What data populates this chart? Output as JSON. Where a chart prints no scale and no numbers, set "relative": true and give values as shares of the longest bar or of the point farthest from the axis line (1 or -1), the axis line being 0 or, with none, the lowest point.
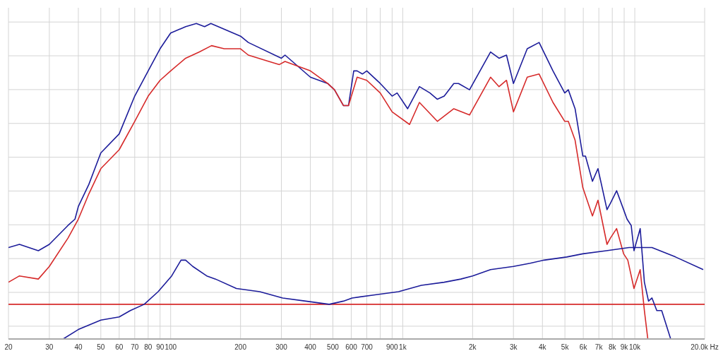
{
  "chart_data": {
    "type": "line",
    "relative": true,
    "log": "x",
    "grid": true,
    "legend": false,
    "xlim": [
      20,
      20000
    ],
    "xticks": [
      20,
      30,
      40,
      50,
      60,
      70,
      80,
      90,
      100,
      200,
      300,
      400,
      500,
      600,
      700,
      {
        "value": 800,
        "label": null
      },
      900,
      {
        "value": 1000,
        "label": "1k"
      },
      {
        "value": 2000,
        "label": "2k"
      },
      {
        "value": 3000,
        "label": "3k"
      },
      {
        "value": 4000,
        "label": "4k"
      },
      {
        "value": 5000,
        "label": "5k"
      },
      {
        "value": 6000,
        "label": "6k"
      },
      {
        "value": 7000,
        "label": "7k"
      },
      {
        "value": 8000,
        "label": "8k"
      },
      {
        "value": 9000,
        "label": "9k"
      },
      {
        "value": 10000,
        "label": "10k"
      },
      {
        "value": 20000,
        "label": "20.0k Hz"
      }
    ],
    "ref_lines": [
      {
        "axis": "y",
        "value": 0.11,
        "color": "#d62a2a"
      }
    ],
    "series": [
      {
        "color": "#1c1c9a",
        "x": [
          20,
          22.3,
          26.9,
          30,
          36.1,
          38.7,
          40,
          44.4,
          50,
          60,
          70,
          80,
          90,
          100,
          116,
          129,
          140,
          149,
          200,
          216,
          300,
          311,
          400,
          475,
          508,
          555,
          584,
          615,
          636,
          670,
          700,
          800,
          900,
          946,
          1050,
          1180,
          1310,
          1410,
          1510,
          1660,
          1740,
          1940,
          2390,
          2600,
          2800,
          3000,
          3440,
          3870,
          4440,
          4990,
          5170,
          5530,
          5970,
          6130,
          6570,
          6940,
          7590,
          7850,
          8350,
          8950,
          9260,
          9650,
          9920,
          10550,
          11000,
          11460,
          11860,
          12440,
          13060,
          14280
        ],
        "values": [
          0.29,
          0.3,
          0.28,
          0.3,
          0.36,
          0.38,
          0.42,
          0.49,
          0.59,
          0.65,
          0.77,
          0.85,
          0.92,
          0.97,
          0.99,
          1.0,
          0.99,
          1.0,
          0.96,
          0.94,
          0.89,
          0.9,
          0.83,
          0.81,
          0.79,
          0.74,
          0.74,
          0.85,
          0.85,
          0.84,
          0.85,
          0.81,
          0.77,
          0.78,
          0.73,
          0.8,
          0.78,
          0.76,
          0.77,
          0.81,
          0.81,
          0.79,
          0.91,
          0.89,
          0.9,
          0.81,
          0.92,
          0.94,
          0.85,
          0.78,
          0.79,
          0.73,
          0.58,
          0.58,
          0.5,
          0.54,
          0.41,
          0.43,
          0.47,
          0.41,
          0.38,
          0.36,
          0.28,
          0.35,
          0.18,
          0.12,
          0.13,
          0.09,
          0.09,
          0.0
        ]
      },
      {
        "color": "#d62a2a",
        "x": [
          20,
          22.3,
          26.9,
          30,
          36.1,
          40,
          44.4,
          50,
          60,
          70,
          80,
          90,
          100,
          116,
          133,
          150,
          170,
          200,
          216,
          265,
          294,
          311,
          400,
          475,
          508,
          555,
          584,
          636,
          700,
          800,
          900,
          1070,
          1180,
          1410,
          1660,
          1940,
          2390,
          2600,
          2800,
          3000,
          3440,
          3870,
          4440,
          4990,
          5170,
          5530,
          5970,
          6570,
          6940,
          7590,
          7850,
          8350,
          8950,
          9330,
          9920,
          10550,
          11000,
          11380
        ],
        "values": [
          0.18,
          0.2,
          0.19,
          0.23,
          0.32,
          0.38,
          0.46,
          0.54,
          0.6,
          0.69,
          0.77,
          0.82,
          0.85,
          0.89,
          0.91,
          0.93,
          0.92,
          0.92,
          0.9,
          0.88,
          0.87,
          0.88,
          0.85,
          0.81,
          0.79,
          0.74,
          0.74,
          0.83,
          0.82,
          0.78,
          0.72,
          0.68,
          0.75,
          0.69,
          0.73,
          0.71,
          0.83,
          0.8,
          0.82,
          0.72,
          0.83,
          0.84,
          0.75,
          0.69,
          0.69,
          0.63,
          0.48,
          0.39,
          0.44,
          0.3,
          0.32,
          0.35,
          0.27,
          0.25,
          0.16,
          0.22,
          0.09,
          0.0
        ]
      },
      {
        "color": "#1c1c9a",
        "x": [
          34.4,
          40,
          50,
          60,
          67,
          76.9,
          88.3,
          101,
          110.8,
          116,
          124.5,
          143,
          156,
          192,
          242,
          304,
          382,
          482,
          555,
          605,
          759,
          959,
          1203,
          1509,
          1780,
          2000,
          2390,
          3000,
          3540,
          4060,
          5090,
          5970,
          7540,
          9450,
          11860,
          14980,
          19720
        ],
        "values": [
          0.0,
          0.03,
          0.06,
          0.07,
          0.09,
          0.11,
          0.15,
          0.2,
          0.25,
          0.25,
          0.23,
          0.2,
          0.19,
          0.16,
          0.15,
          0.13,
          0.12,
          0.11,
          0.12,
          0.13,
          0.14,
          0.15,
          0.17,
          0.18,
          0.19,
          0.2,
          0.22,
          0.23,
          0.24,
          0.25,
          0.26,
          0.27,
          0.28,
          0.29,
          0.29,
          0.26,
          0.22
        ]
      }
    ]
  }
}
